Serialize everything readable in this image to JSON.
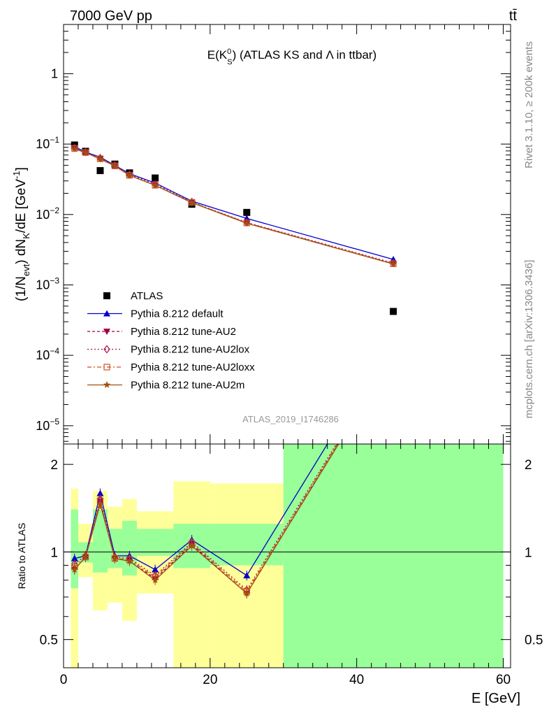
{
  "header": {
    "left": "7000 GeV pp",
    "right": "tt̄"
  },
  "side_labels": {
    "rivet": "Rivet 3.1.10, ≥ 200k events",
    "mcplots": "mcplots.cern.ch [arXiv:1306.3436]"
  },
  "watermark": "ATLAS_2019_I1746286",
  "colors": {
    "atlas": "#000000",
    "default": "#0000cc",
    "au2": "#a0004a",
    "au2lox": "#b01050",
    "au2loxx": "#cc5522",
    "au2m": "#a05010",
    "band_green": "#99ff99",
    "band_yellow": "#ffff99"
  },
  "chart_data": [
    {
      "type": "scatter",
      "title_parts": {
        "main": "E(K",
        "sup": "0",
        "sub": "S",
        "after": ") (ATLAS KS and Λ in ttbar)"
      },
      "ylabel_parts": {
        "a": "(1/N",
        "sub1": "evt",
        "b": ") dN",
        "sub2": "K",
        "c": "/dE [GeV",
        "sup": "-1",
        "d": "]"
      },
      "yscale": "log",
      "xlim": [
        0,
        61
      ],
      "ylim": [
        5.5e-06,
        5.0
      ],
      "yticks": [
        {
          "v": 1e-05,
          "base": "10",
          "exp": "−5"
        },
        {
          "v": 0.0001,
          "base": "10",
          "exp": "−4"
        },
        {
          "v": 0.001,
          "base": "10",
          "exp": "−3"
        },
        {
          "v": 0.01,
          "base": "10",
          "exp": "−2"
        },
        {
          "v": 0.1,
          "base": "10",
          "exp": "−1"
        },
        {
          "v": 1,
          "base": "1",
          "exp": ""
        }
      ],
      "legend_position": "lower-left",
      "series": [
        {
          "key": "atlas",
          "name": "ATLAS",
          "marker": "square",
          "dash": "none",
          "x": [
            1.5,
            3.0,
            5.0,
            7.0,
            9.0,
            12.5,
            17.5,
            25.0,
            45.0
          ],
          "y": [
            0.097,
            0.079,
            0.042,
            0.052,
            0.039,
            0.033,
            0.014,
            0.0107,
            0.00042
          ]
        },
        {
          "key": "default",
          "name": "Pythia 8.212 default",
          "marker": "triangle-up",
          "dash": "none",
          "x": [
            1.5,
            3.0,
            5.0,
            7.0,
            9.0,
            12.5,
            17.5,
            25.0,
            45.0
          ],
          "y": [
            0.092,
            0.077,
            0.065,
            0.05,
            0.038,
            0.028,
            0.0155,
            0.0088,
            0.0023
          ]
        },
        {
          "key": "au2",
          "name": "Pythia 8.212 tune-AU2",
          "marker": "triangle-down",
          "dash": "4,3",
          "x": [
            1.5,
            3.0,
            5.0,
            7.0,
            9.0,
            12.5,
            17.5,
            25.0,
            45.0
          ],
          "y": [
            0.086,
            0.076,
            0.062,
            0.049,
            0.036,
            0.026,
            0.0148,
            0.0076,
            0.002
          ]
        },
        {
          "key": "au2lox",
          "name": "Pythia 8.212 tune-AU2lox",
          "marker": "diamond",
          "dash": "2,3",
          "x": [
            1.5,
            3.0,
            5.0,
            7.0,
            9.0,
            12.5,
            17.5,
            25.0,
            45.0
          ],
          "y": [
            0.088,
            0.077,
            0.063,
            0.05,
            0.037,
            0.027,
            0.015,
            0.0077,
            0.00205
          ]
        },
        {
          "key": "au2loxx",
          "name": "Pythia 8.212 tune-AU2loxx",
          "marker": "square-open",
          "dash": "6,3,2,3",
          "x": [
            1.5,
            3.0,
            5.0,
            7.0,
            9.0,
            12.5,
            17.5,
            25.0,
            45.0
          ],
          "y": [
            0.087,
            0.076,
            0.062,
            0.049,
            0.036,
            0.026,
            0.0149,
            0.0076,
            0.002
          ]
        },
        {
          "key": "au2m",
          "name": "Pythia 8.212 tune-AU2m",
          "marker": "star",
          "dash": "none",
          "x": [
            1.5,
            3.0,
            5.0,
            7.0,
            9.0,
            12.5,
            17.5,
            25.0,
            45.0
          ],
          "y": [
            0.085,
            0.076,
            0.061,
            0.049,
            0.036,
            0.026,
            0.0147,
            0.0075,
            0.00198
          ]
        }
      ]
    },
    {
      "type": "line",
      "ylabel": "Ratio to ATLAS",
      "xlabel": "E [GeV]",
      "yscale": "log",
      "xlim": [
        0,
        61
      ],
      "ylim": [
        0.4,
        2.35
      ],
      "xticks": [
        0,
        20,
        40,
        60
      ],
      "yticks": [
        {
          "v": 0.5,
          "label": "0.5"
        },
        {
          "v": 1,
          "label": "1"
        },
        {
          "v": 2,
          "label": "2"
        }
      ],
      "reference_line": 1,
      "bands": [
        {
          "x0": 1.0,
          "x1": 2.0,
          "g_lo": 0.75,
          "g_hi": 1.4,
          "y_lo": 0.38,
          "y_hi": 1.65
        },
        {
          "x0": 2.0,
          "x1": 4.0,
          "g_lo": 0.92,
          "g_hi": 1.08,
          "y_lo": 0.82,
          "y_hi": 1.25
        },
        {
          "x0": 4.0,
          "x1": 6.0,
          "g_lo": 0.85,
          "g_hi": 1.4,
          "y_lo": 0.63,
          "y_hi": 1.62
        },
        {
          "x0": 6.0,
          "x1": 8.0,
          "g_lo": 0.88,
          "g_hi": 1.2,
          "y_lo": 0.67,
          "y_hi": 1.43
        },
        {
          "x0": 8.0,
          "x1": 10.0,
          "g_lo": 0.83,
          "g_hi": 1.28,
          "y_lo": 0.58,
          "y_hi": 1.52
        },
        {
          "x0": 10.0,
          "x1": 15.0,
          "g_lo": 0.97,
          "g_hi": 1.2,
          "y_lo": 0.72,
          "y_hi": 1.38
        },
        {
          "x0": 15.0,
          "x1": 20.0,
          "g_lo": 0.88,
          "g_hi": 1.25,
          "y_lo": 0.38,
          "y_hi": 1.75
        },
        {
          "x0": 20.0,
          "x1": 30.0,
          "g_lo": 0.9,
          "g_hi": 1.25,
          "y_lo": 0.38,
          "y_hi": 1.72
        },
        {
          "x0": 30.0,
          "x1": 60.0,
          "g_lo": 0.38,
          "g_hi": 2.4,
          "y_lo": 0.38,
          "y_hi": 2.4
        }
      ],
      "series": [
        {
          "key": "default",
          "marker": "triangle-up",
          "dash": "none",
          "x": [
            1.5,
            3.0,
            5.0,
            7.0,
            9.0,
            12.5,
            17.5,
            25.0,
            45.0
          ],
          "y": [
            0.95,
            0.97,
            1.59,
            0.97,
            0.97,
            0.87,
            1.1,
            0.83,
            5.5
          ]
        },
        {
          "key": "au2",
          "marker": "triangle-down",
          "dash": "4,3",
          "x": [
            1.5,
            3.0,
            5.0,
            7.0,
            9.0,
            12.5,
            17.5,
            25.0,
            45.0
          ],
          "y": [
            0.87,
            0.96,
            1.49,
            0.95,
            0.93,
            0.81,
            1.06,
            0.72,
            4.8
          ]
        },
        {
          "key": "au2lox",
          "marker": "diamond",
          "dash": "2,3",
          "x": [
            1.5,
            3.0,
            5.0,
            7.0,
            9.0,
            12.5,
            17.5,
            25.0,
            45.0
          ],
          "y": [
            0.91,
            0.97,
            1.52,
            0.96,
            0.95,
            0.83,
            1.08,
            0.74,
            4.9
          ]
        },
        {
          "key": "au2loxx",
          "marker": "square-open",
          "dash": "6,3,2,3",
          "x": [
            1.5,
            3.0,
            5.0,
            7.0,
            9.0,
            12.5,
            17.5,
            25.0,
            45.0
          ],
          "y": [
            0.89,
            0.96,
            1.5,
            0.95,
            0.94,
            0.82,
            1.07,
            0.73,
            4.85
          ]
        },
        {
          "key": "au2m",
          "marker": "star",
          "dash": "none",
          "x": [
            1.5,
            3.0,
            5.0,
            7.0,
            9.0,
            12.5,
            17.5,
            25.0,
            45.0
          ],
          "y": [
            0.87,
            0.96,
            1.46,
            0.95,
            0.93,
            0.8,
            1.05,
            0.72,
            4.75
          ]
        }
      ]
    }
  ]
}
